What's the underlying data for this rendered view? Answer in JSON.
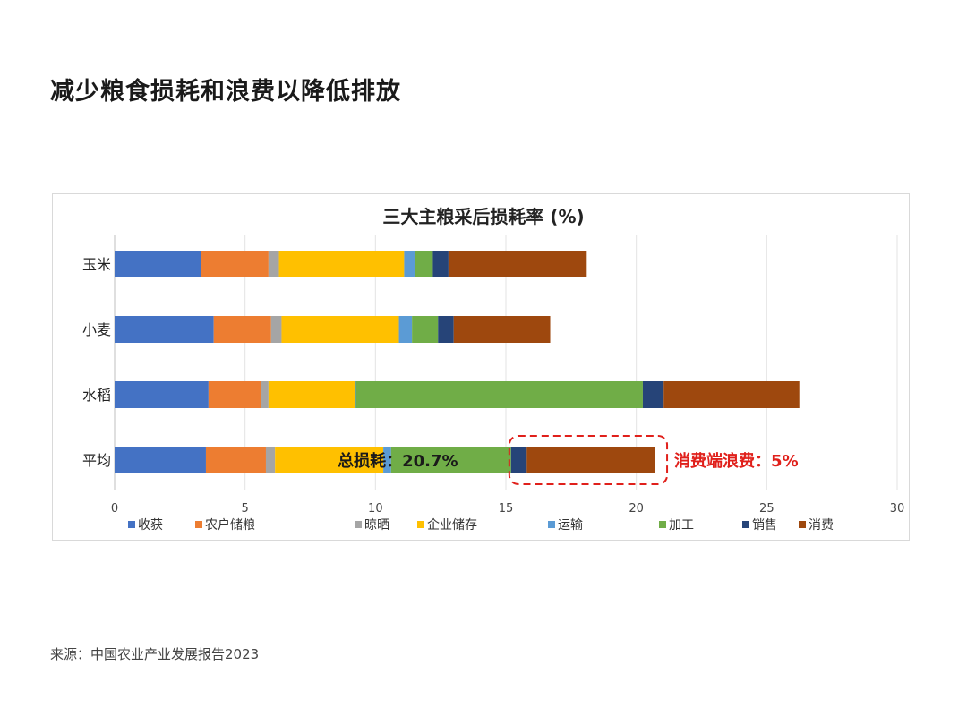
{
  "page": {
    "title": "减少粮食损耗和浪费以降低排放",
    "source": "来源：中国农业产业发展报告2023"
  },
  "chart_data": {
    "type": "bar",
    "orientation": "horizontal",
    "stacked": true,
    "title": "三大主粮采后损耗率 (%)",
    "categories": [
      "玉米",
      "小麦",
      "水稻",
      "平均"
    ],
    "xlim": [
      0,
      30
    ],
    "xticks": [
      0,
      5,
      10,
      15,
      20,
      25,
      30
    ],
    "grid": "vertical",
    "legend_position": "bottom",
    "series": [
      {
        "name": "收获",
        "color": "#4472C4",
        "values": [
          3.3,
          3.8,
          3.6,
          3.5
        ]
      },
      {
        "name": "农户储粮",
        "color": "#ED7D31",
        "values": [
          2.6,
          2.2,
          2.0,
          2.3
        ]
      },
      {
        "name": "晾晒",
        "color": "#A5A5A5",
        "values": [
          0.4,
          0.4,
          0.3,
          0.35
        ]
      },
      {
        "name": "企业储存",
        "color": "#FFC000",
        "values": [
          4.8,
          4.5,
          3.3,
          4.15
        ]
      },
      {
        "name": "运输",
        "color": "#5B9BD5",
        "values": [
          0.4,
          0.5,
          0.05,
          0.3
        ]
      },
      {
        "name": "加工",
        "color": "#70AD47",
        "values": [
          0.7,
          1.0,
          11.0,
          4.6
        ]
      },
      {
        "name": "销售",
        "color": "#264478",
        "values": [
          0.6,
          0.6,
          0.8,
          0.6
        ]
      },
      {
        "name": "消费",
        "color": "#9E480E",
        "values": [
          5.3,
          3.7,
          5.2,
          4.9
        ]
      }
    ],
    "annotations": {
      "total_label": "总损耗：20.7%",
      "consumer_label": "消费端浪费：5%",
      "highlight_color": "#E0201B"
    }
  }
}
